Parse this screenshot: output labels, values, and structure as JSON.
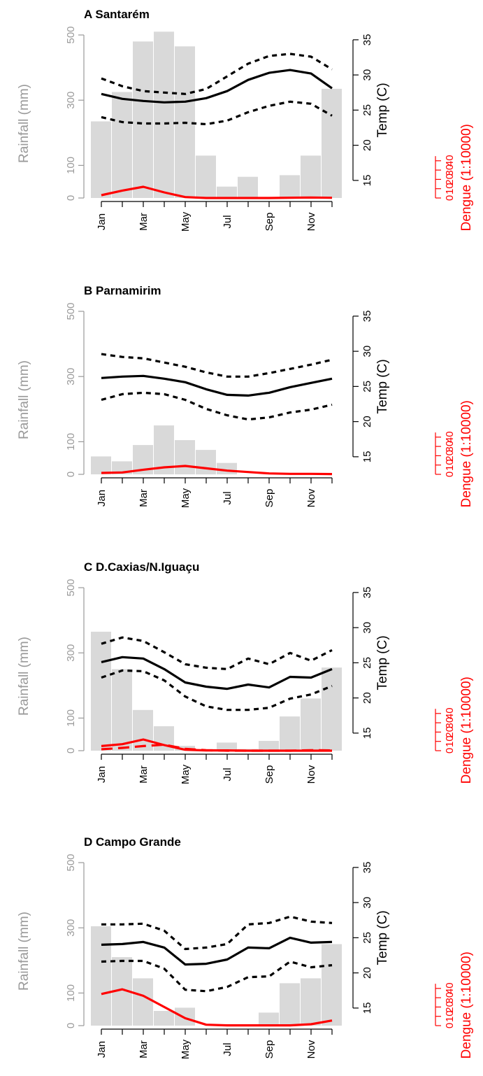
{
  "colors": {
    "rain": "#d9d9d9",
    "rain_axis": "#9a9a9a",
    "temp": "#000000",
    "dengue": "#ff0000"
  },
  "chart_data": [
    {
      "type": "bar+line",
      "title": "A Santarém",
      "xticks": [
        "Jan",
        "Mar",
        "May",
        "Jul",
        "Sep",
        "Nov"
      ],
      "rain_axis": {
        "label": "Rainfall (mm)",
        "ticks": [
          0,
          100,
          300,
          500
        ],
        "ylim": [
          0,
          530
        ]
      },
      "temp_axis": {
        "label": "Temp (C)",
        "ticks": [
          15,
          20,
          25,
          30,
          35
        ],
        "ylim": [
          12.5,
          35
        ]
      },
      "dengue_axis": {
        "label": "Dengue (1:10000)",
        "ticks": [
          0,
          10,
          20,
          30,
          40
        ]
      },
      "rainfall": [
        235,
        325,
        480,
        510,
        465,
        130,
        35,
        65,
        0,
        70,
        130,
        335
      ],
      "temp_mean": [
        27.3,
        26.6,
        26.3,
        26.1,
        26.2,
        26.7,
        27.7,
        29.3,
        30.3,
        30.7,
        30.2,
        28.1
      ],
      "temp_max": [
        29.5,
        28.4,
        27.7,
        27.5,
        27.3,
        28.0,
        29.8,
        31.6,
        32.7,
        33.0,
        32.6,
        30.8
      ],
      "temp_min": [
        24.0,
        23.3,
        23.1,
        23.1,
        23.2,
        23.0,
        23.5,
        24.7,
        25.6,
        26.2,
        25.9,
        24.2
      ],
      "dengue": [
        3,
        8,
        12,
        6,
        1,
        0,
        0,
        0,
        0,
        0.3,
        0.5,
        0.2
      ],
      "dengue_dashed": []
    },
    {
      "type": "bar+line",
      "title": "B Parnamirim",
      "xticks": [
        "Jan",
        "Mar",
        "May",
        "Jul",
        "Sep",
        "Nov"
      ],
      "rain_axis": {
        "label": "Rainfall (mm)",
        "ticks": [
          0,
          100,
          300,
          500
        ],
        "ylim": [
          0,
          530
        ]
      },
      "temp_axis": {
        "label": "Temp (C)",
        "ticks": [
          15,
          20,
          25,
          30,
          35
        ],
        "ylim": [
          12.5,
          35
        ]
      },
      "dengue_axis": {
        "label": "Dengue (1:10000)",
        "ticks": [
          0,
          10,
          20,
          30,
          40
        ]
      },
      "rainfall": [
        55,
        40,
        90,
        150,
        105,
        75,
        35,
        0,
        0,
        0,
        0,
        0
      ],
      "temp_mean": [
        26.2,
        26.4,
        26.5,
        26.1,
        25.6,
        24.6,
        23.8,
        23.7,
        24.1,
        24.9,
        25.5,
        26.1
      ],
      "temp_max": [
        29.6,
        29.2,
        29.0,
        28.4,
        27.8,
        27.0,
        26.4,
        26.4,
        26.9,
        27.5,
        28.1,
        28.8
      ],
      "temp_min": [
        23.1,
        23.9,
        24.1,
        23.9,
        23.1,
        21.8,
        20.9,
        20.3,
        20.6,
        21.3,
        21.7,
        22.4
      ],
      "dengue": [
        1.5,
        2,
        5,
        7.5,
        9,
        6.5,
        4,
        2.5,
        1,
        0.5,
        0.5,
        0.3
      ],
      "dengue_dashed": []
    },
    {
      "type": "bar+line",
      "title": "C  D.Caxias/N.Iguaçu",
      "xticks": [
        "Jan",
        "Mar",
        "May",
        "Jul",
        "Sep",
        "Nov"
      ],
      "rain_axis": {
        "label": "Rainfall (mm)",
        "ticks": [
          0,
          100,
          300,
          500
        ],
        "ylim": [
          0,
          530
        ]
      },
      "temp_axis": {
        "label": "Temp (C)",
        "ticks": [
          15,
          20,
          25,
          30,
          35
        ],
        "ylim": [
          12.5,
          35
        ]
      },
      "dengue_axis": {
        "label": "Dengue (1:10000)",
        "ticks": [
          0,
          10,
          20,
          30,
          40
        ]
      },
      "rainfall": [
        365,
        250,
        125,
        75,
        15,
        5,
        25,
        5,
        30,
        105,
        160,
        255
      ],
      "temp_mean": [
        25.1,
        25.8,
        25.6,
        24.1,
        22.2,
        21.6,
        21.3,
        21.9,
        21.5,
        23.0,
        22.9,
        24.1
      ],
      "temp_max": [
        27.7,
        28.6,
        28.1,
        26.5,
        24.8,
        24.3,
        24.1,
        25.6,
        24.8,
        26.4,
        25.3,
        26.8
      ],
      "temp_min": [
        22.9,
        23.9,
        23.8,
        22.5,
        20.2,
        18.8,
        18.3,
        18.3,
        18.6,
        19.9,
        20.5,
        21.7
      ],
      "dengue": [
        5,
        7,
        12,
        6,
        1,
        0.3,
        0.3,
        0,
        0,
        0,
        0,
        0
      ],
      "dengue_dashed": [
        1.5,
        3,
        5,
        6.5,
        2,
        0.5,
        0,
        0,
        0,
        0,
        0.5,
        0.3
      ]
    },
    {
      "type": "bar+line",
      "title": "D  Campo Grande",
      "xticks": [
        "Jan",
        "Mar",
        "May",
        "Jul",
        "Sep",
        "Nov"
      ],
      "rain_axis": {
        "label": "Rainfall (mm)",
        "ticks": [
          0,
          100,
          300,
          500
        ],
        "ylim": [
          0,
          530
        ]
      },
      "temp_axis": {
        "label": "Temp (C)",
        "ticks": [
          15,
          20,
          25,
          30,
          35
        ],
        "ylim": [
          12.5,
          35
        ]
      },
      "dengue_axis": {
        "label": "Dengue (1:10000)",
        "ticks": [
          0,
          10,
          20,
          30,
          40
        ]
      },
      "rainfall": [
        305,
        210,
        145,
        45,
        55,
        0,
        0,
        0,
        40,
        130,
        145,
        250
      ],
      "temp_mean": [
        24.0,
        24.1,
        24.4,
        23.6,
        21.2,
        21.3,
        21.9,
        23.6,
        23.5,
        25.0,
        24.3,
        24.4
      ],
      "temp_max": [
        26.9,
        26.9,
        27.0,
        26.0,
        23.4,
        23.6,
        24.1,
        26.9,
        27.1,
        28.0,
        27.3,
        27.1
      ],
      "temp_min": [
        21.6,
        21.7,
        21.7,
        20.6,
        17.6,
        17.4,
        18.0,
        19.4,
        19.5,
        21.6,
        20.8,
        21.1
      ],
      "dengue": [
        34,
        39,
        32,
        20,
        8,
        1,
        0.3,
        0.3,
        0.3,
        0.3,
        1.5,
        5.5
      ],
      "dengue_dashed": []
    }
  ]
}
